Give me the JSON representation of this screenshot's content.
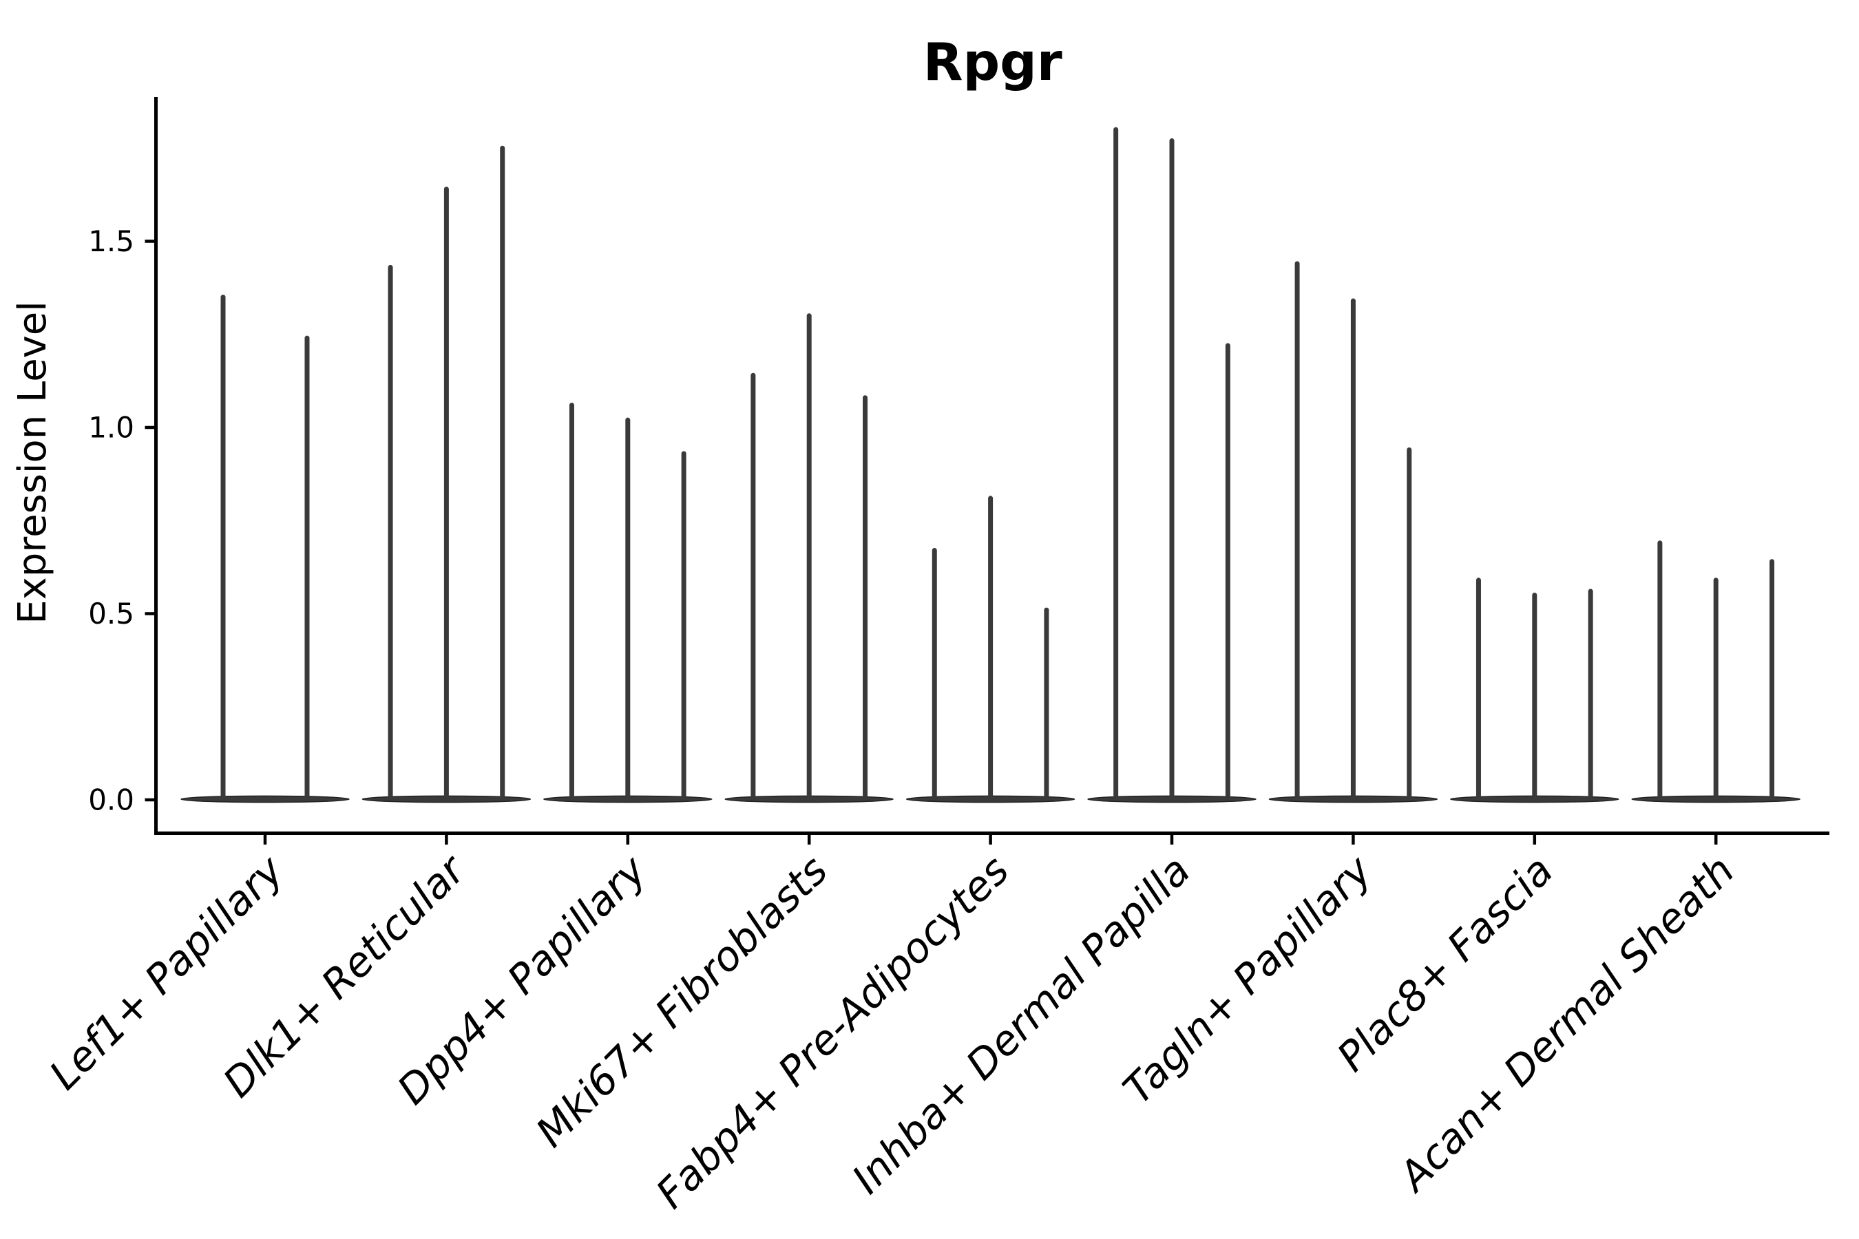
{
  "figure": {
    "title": "Rpgr",
    "ylabel": "Expression Level",
    "background_color": "#ffffff",
    "axis_color": "#000000",
    "violin_fill_color": "#3a3a3a",
    "violin_edge_color": "#222222",
    "text_color": "#000000"
  },
  "chart_data": {
    "type": "violin",
    "title": "Rpgr",
    "xlabel": "",
    "ylabel": "Expression Level",
    "ylim": [
      -0.09,
      1.89
    ],
    "ytick_labels": [
      "0.0",
      "0.5",
      "1.0",
      "1.5"
    ],
    "ytick_values": [
      0.0,
      0.5,
      1.0,
      1.5
    ],
    "grid": false,
    "legend": "none",
    "x_label_rotation_deg": 45,
    "categories": [
      "Lef1+ Papillary",
      "Dlk1+ Reticular",
      "Dpp4+ Papillary",
      "Mki67+ Fibroblasts",
      "Fabp4+ Pre-Adipocytes",
      "Inhba+ Dermal Papilla",
      "Tagln+ Papillary",
      "Plac8+ Fascia",
      "Acan+ Dermal Sheath"
    ],
    "series": [
      {
        "category": "Lef1+ Papillary",
        "violin_max_expression": [
          1.35,
          1.24
        ]
      },
      {
        "category": "Dlk1+ Reticular",
        "violin_max_expression": [
          1.43,
          1.64,
          1.75
        ]
      },
      {
        "category": "Dpp4+ Papillary",
        "violin_max_expression": [
          1.06,
          1.02,
          0.93
        ]
      },
      {
        "category": "Mki67+ Fibroblasts",
        "violin_max_expression": [
          1.14,
          1.3,
          1.08
        ]
      },
      {
        "category": "Fabp4+ Pre-Adipocytes",
        "violin_max_expression": [
          0.67,
          0.81,
          0.51
        ]
      },
      {
        "category": "Inhba+ Dermal Papilla",
        "violin_max_expression": [
          1.8,
          1.77,
          1.22
        ]
      },
      {
        "category": "Tagln+ Papillary",
        "violin_max_expression": [
          1.44,
          1.34,
          0.94
        ]
      },
      {
        "category": "Plac8+ Fascia",
        "violin_max_expression": [
          0.59,
          0.55,
          0.56
        ]
      },
      {
        "category": "Acan+ Dermal Sheath",
        "violin_max_expression": [
          0.69,
          0.59,
          0.64
        ]
      }
    ],
    "violin_shape_note": "each violin is a flat dense base at expression 0 with a thin spike up to its max expression value"
  }
}
